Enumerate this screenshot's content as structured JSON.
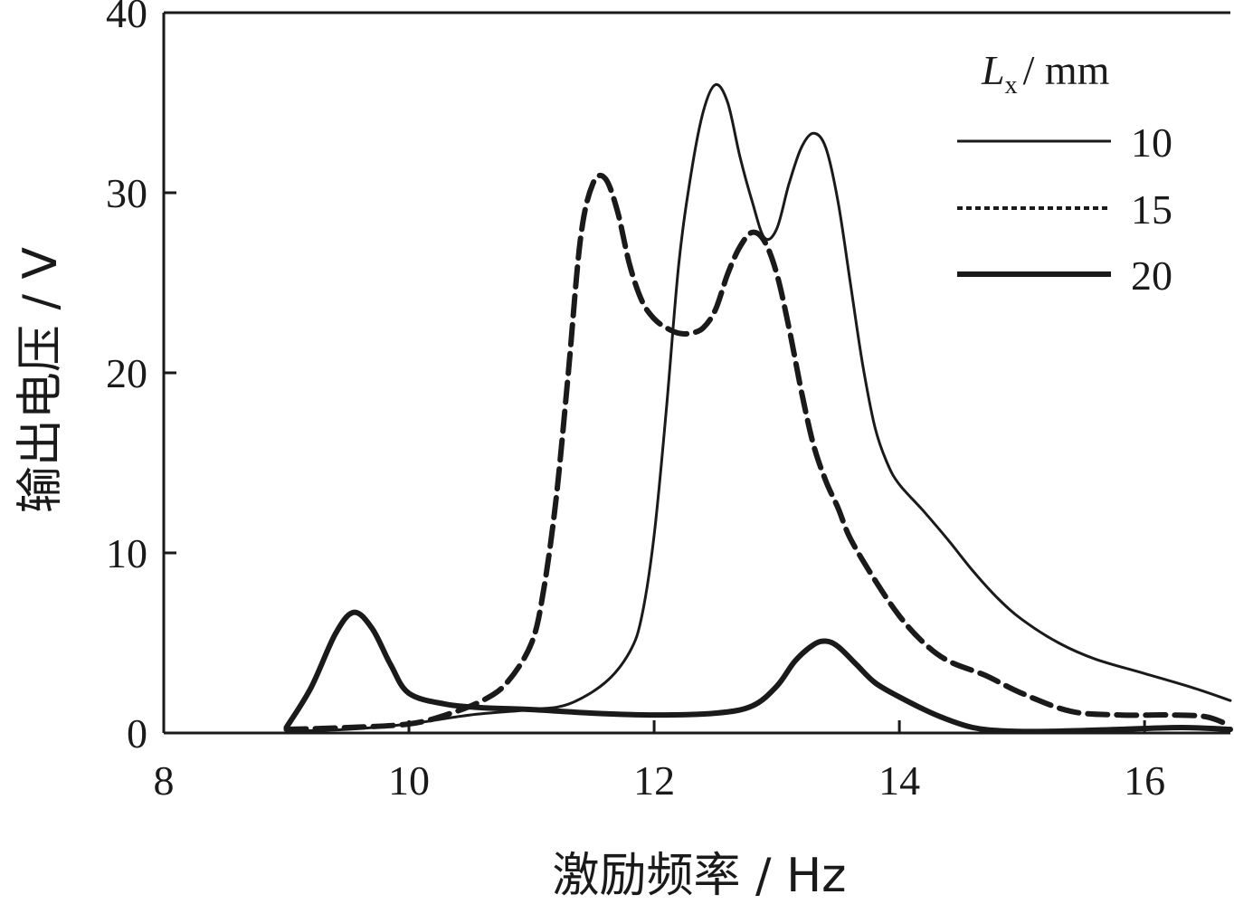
{
  "chart_data": {
    "type": "line",
    "xlabel": "激励频率 / Hz",
    "ylabel": "输出电压 / V",
    "xlim": [
      8,
      16.7
    ],
    "ylim": [
      0,
      40
    ],
    "x_ticks": [
      8,
      10,
      12,
      14,
      16
    ],
    "y_ticks": [
      0,
      10,
      20,
      30,
      40
    ],
    "grid": false,
    "legend": {
      "placement": "top-right",
      "title_var": "L",
      "title_sub": "x",
      "title_unit": "/ mm"
    },
    "series": [
      {
        "name": "10",
        "style": "solid-thin",
        "x": [
          9.0,
          9.5,
          10.0,
          10.5,
          11.0,
          11.3,
          11.6,
          11.8,
          11.9,
          12.0,
          12.1,
          12.2,
          12.3,
          12.4,
          12.5,
          12.6,
          12.7,
          12.8,
          12.9,
          13.0,
          13.1,
          13.2,
          13.3,
          13.4,
          13.5,
          13.6,
          13.7,
          13.8,
          13.9,
          14.0,
          14.2,
          14.4,
          14.6,
          14.8,
          15.0,
          15.3,
          15.6,
          16.0,
          16.4,
          16.7
        ],
        "y": [
          0.1,
          0.2,
          0.5,
          1.0,
          1.3,
          1.6,
          2.8,
          4.5,
          6.5,
          11,
          18,
          26,
          31,
          34.5,
          36,
          35,
          32,
          29.5,
          27.5,
          28,
          30.5,
          32.5,
          33.3,
          32.5,
          29.5,
          25,
          20.5,
          17,
          15,
          13.8,
          12.3,
          10.7,
          9.0,
          7.5,
          6.3,
          5.0,
          4.1,
          3.3,
          2.5,
          1.8
        ]
      },
      {
        "name": "15",
        "style": "dashed",
        "x": [
          9.0,
          9.5,
          10.0,
          10.3,
          10.6,
          10.8,
          11.0,
          11.1,
          11.2,
          11.3,
          11.4,
          11.5,
          11.6,
          11.7,
          11.8,
          11.9,
          12.0,
          12.1,
          12.2,
          12.3,
          12.4,
          12.5,
          12.6,
          12.7,
          12.8,
          12.9,
          13.0,
          13.1,
          13.2,
          13.3,
          13.4,
          13.5,
          13.6,
          13.8,
          14.0,
          14.2,
          14.4,
          14.7,
          15.0,
          15.4,
          15.8,
          16.2,
          16.5,
          16.7
        ],
        "y": [
          0.2,
          0.3,
          0.5,
          1.0,
          1.8,
          2.8,
          5.0,
          8.0,
          13.0,
          20.0,
          27.5,
          30.5,
          30.8,
          29.0,
          26.0,
          24.0,
          23.0,
          22.5,
          22.2,
          22.2,
          22.5,
          23.5,
          25.5,
          27.0,
          27.8,
          27.3,
          25.5,
          22.5,
          19.0,
          16.0,
          14.0,
          12.5,
          10.8,
          8.5,
          6.5,
          5.0,
          4.0,
          3.2,
          2.2,
          1.2,
          1.0,
          1.0,
          0.9,
          0.4
        ]
      },
      {
        "name": "20",
        "style": "solid-thick",
        "x": [
          9.0,
          9.2,
          9.4,
          9.55,
          9.7,
          9.85,
          10.0,
          10.3,
          10.6,
          11.0,
          11.5,
          12.0,
          12.5,
          12.8,
          13.0,
          13.15,
          13.3,
          13.4,
          13.5,
          13.65,
          13.8,
          14.0,
          14.3,
          14.6,
          14.9,
          15.3,
          15.8,
          16.3,
          16.7
        ],
        "y": [
          0.3,
          2.5,
          5.5,
          6.7,
          5.8,
          3.8,
          2.2,
          1.6,
          1.4,
          1.3,
          1.1,
          1.0,
          1.1,
          1.5,
          2.6,
          4.0,
          4.9,
          5.1,
          4.8,
          3.8,
          2.8,
          2.0,
          1.0,
          0.3,
          0.0,
          0.1,
          0.2,
          0.3,
          0.2
        ]
      }
    ]
  }
}
